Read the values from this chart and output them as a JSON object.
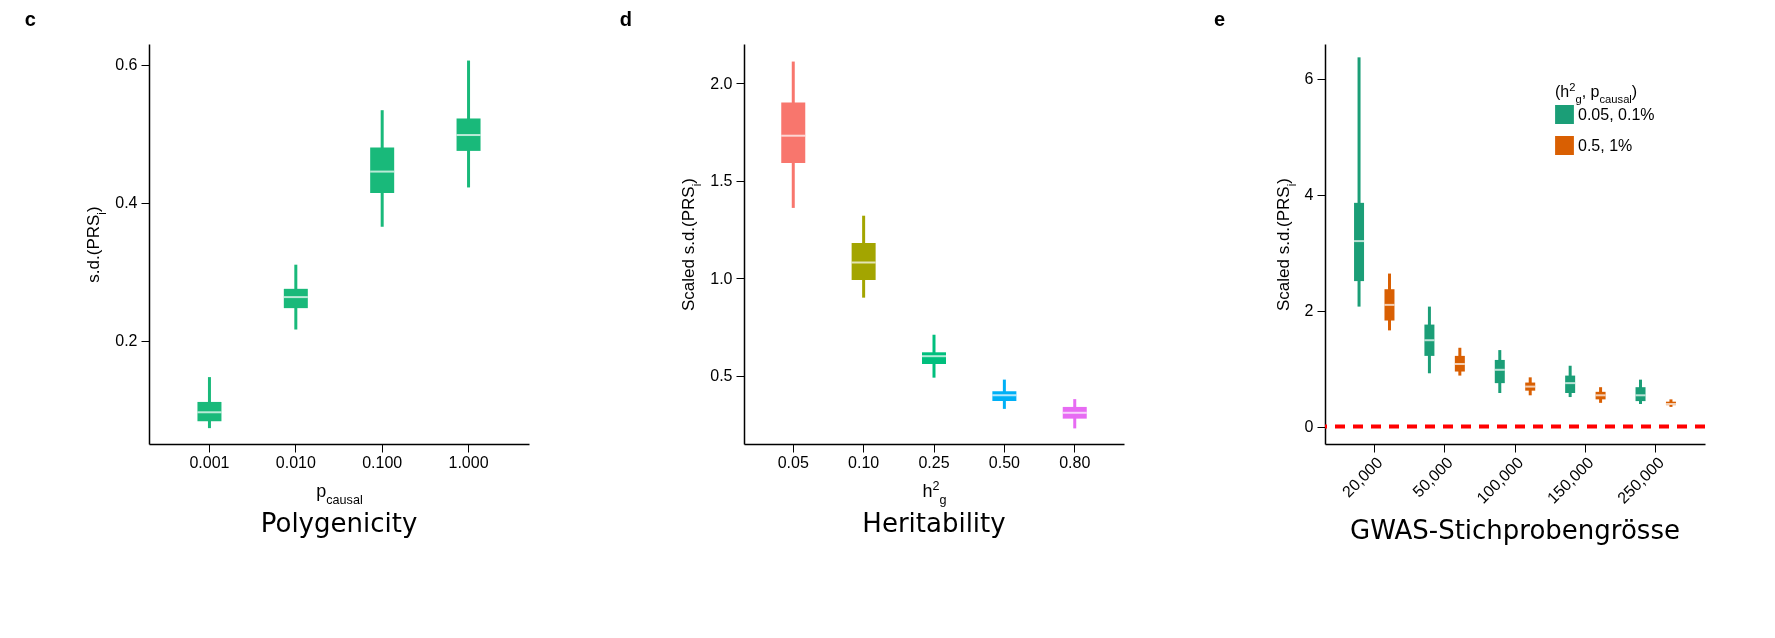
{
  "chart_data": [
    {
      "type": "box",
      "title": "c",
      "xlabel": "p$_{causal}$",
      "ylabel": "s.d.(PRS$_{i}$)",
      "categories": [
        "0.001",
        "0.010",
        "0.100",
        "1.000"
      ],
      "color": "#19b97a",
      "ylim": [
        0.05,
        0.63
      ],
      "yticks": [
        0.2,
        0.4,
        0.6
      ],
      "grid": false,
      "annotations": [
        "Polygenicity"
      ],
      "boxes": [
        {
          "low": 0.073,
          "q1": 0.083,
          "median": 0.096,
          "q3": 0.111,
          "high": 0.147
        },
        {
          "low": 0.216,
          "q1": 0.247,
          "median": 0.263,
          "q3": 0.275,
          "high": 0.31
        },
        {
          "low": 0.365,
          "q1": 0.414,
          "median": 0.445,
          "q3": 0.48,
          "high": 0.534
        },
        {
          "low": 0.422,
          "q1": 0.475,
          "median": 0.498,
          "q3": 0.522,
          "high": 0.606
        }
      ]
    },
    {
      "type": "box",
      "title": "d",
      "xlabel": "h$^{2}$$_{g}$",
      "ylabel": "Scaled s.d.(PRS$_{i}$)",
      "categories": [
        "0.05",
        "0.10",
        "0.25",
        "0.50",
        "0.80"
      ],
      "colors": [
        "#f8766d",
        "#a3a500",
        "#00bf7d",
        "#00b0f6",
        "#e76bf3"
      ],
      "ylim": [
        0.15,
        2.2
      ],
      "yticks": [
        0.5,
        {
          "value": 1,
          "label": "1.0"
        },
        1.5,
        {
          "value": 2,
          "label": "2.0"
        }
      ],
      "grid": false,
      "annotations": [
        "Heritability"
      ],
      "boxes": [
        {
          "low": 1.36,
          "q1": 1.59,
          "median": 1.73,
          "q3": 1.9,
          "high": 2.11
        },
        {
          "low": 0.9,
          "q1": 0.99,
          "median": 1.08,
          "q3": 1.18,
          "high": 1.32
        },
        {
          "low": 0.49,
          "q1": 0.56,
          "median": 0.6,
          "q3": 0.62,
          "high": 0.71
        },
        {
          "low": 0.33,
          "q1": 0.37,
          "median": 0.4,
          "q3": 0.42,
          "high": 0.48
        },
        {
          "low": 0.23,
          "q1": 0.28,
          "median": 0.31,
          "q3": 0.34,
          "high": 0.38
        }
      ]
    },
    {
      "type": "box",
      "title": "e",
      "ylabel": "Scaled s.d.(PRS$_{i}$)",
      "legend_title": "(h$^{2}$$_{g}$, p$_{causal}$)",
      "legend": "top right",
      "categories": [
        "20,000",
        "50,000",
        "100,000",
        "150,000",
        "250,000"
      ],
      "ylim": [
        -0.3,
        6.6
      ],
      "yticks": [
        0,
        2,
        4,
        6
      ],
      "grid": false,
      "annotations": [
        "GWAS-Stichprobengrösse"
      ],
      "ref_lines": [
        {
          "axis": "y",
          "value": 0,
          "color": "#ff0000",
          "line_style": "dashed"
        }
      ],
      "series": [
        {
          "name": "0.05, 0.1%",
          "color": "#1b9e77",
          "boxes": [
            {
              "low": 2.07,
              "q1": 2.51,
              "median": 3.2,
              "q3": 3.86,
              "high": 6.37
            },
            {
              "low": 0.92,
              "q1": 1.22,
              "median": 1.49,
              "q3": 1.76,
              "high": 2.07
            },
            {
              "low": 0.58,
              "q1": 0.75,
              "median": 0.98,
              "q3": 1.15,
              "high": 1.32
            },
            {
              "low": 0.51,
              "q1": 0.58,
              "median": 0.75,
              "q3": 0.88,
              "high": 1.05
            },
            {
              "low": 0.39,
              "q1": 0.44,
              "median": 0.54,
              "q3": 0.68,
              "high": 0.81
            }
          ]
        },
        {
          "name": "0.5, 1%",
          "color": "#d95f02",
          "boxes": [
            {
              "low": 1.66,
              "q1": 1.83,
              "median": 2.1,
              "q3": 2.37,
              "high": 2.64
            },
            {
              "low": 0.88,
              "q1": 0.95,
              "median": 1.08,
              "q3": 1.22,
              "high": 1.36
            },
            {
              "low": 0.54,
              "q1": 0.62,
              "median": 0.69,
              "q3": 0.76,
              "high": 0.85
            },
            {
              "low": 0.41,
              "q1": 0.47,
              "median": 0.54,
              "q3": 0.6,
              "high": 0.68
            },
            {
              "low": 0.34,
              "q1": 0.37,
              "median": 0.39,
              "q3": 0.43,
              "high": 0.47
            }
          ]
        }
      ]
    }
  ]
}
